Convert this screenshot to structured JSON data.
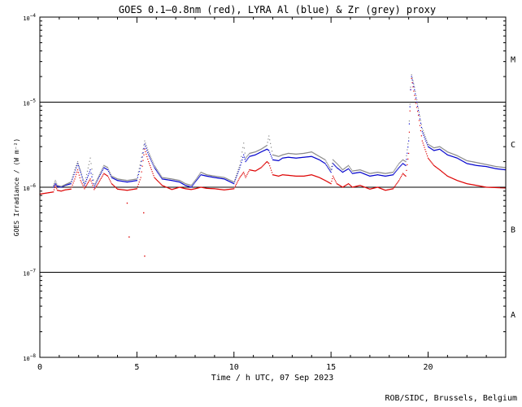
{
  "chart_data": {
    "type": "scatter",
    "title": "GOES 0.1–0.8nm (red), LYRA Al (blue) & Zr (grey) proxy",
    "xlabel": "Time / h UTC, 07 Sep 2023",
    "ylabel": "GOES Irradiance / (W m⁻²)",
    "credit": "ROB/SIDC, Brussels, Belgium",
    "xlim": [
      0,
      24
    ],
    "ylim": [
      1e-08,
      0.0001
    ],
    "yscale": "log",
    "x_ticks": [
      0,
      5,
      10,
      15,
      20
    ],
    "x_tick_labels": [
      "0",
      "5",
      "10",
      "15",
      "20"
    ],
    "y_ticks": [
      1e-08,
      1e-07,
      1e-06,
      1e-05,
      0.0001
    ],
    "y_tick_labels": [
      {
        "base": "10",
        "exp": "−8"
      },
      {
        "base": "10",
        "exp": "−7"
      },
      {
        "base": "10",
        "exp": "−6"
      },
      {
        "base": "10",
        "exp": "−5"
      },
      {
        "base": "10",
        "exp": "−4"
      }
    ],
    "flare_classes": [
      {
        "label": "A",
        "value": 3.2e-08
      },
      {
        "label": "B",
        "value": 3.2e-07
      },
      {
        "label": "C",
        "value": 3.2e-06
      },
      {
        "label": "M",
        "value": 3.2e-05
      }
    ],
    "reference_lines": [
      1e-07,
      1e-06,
      1e-05
    ],
    "grid": false,
    "series": [
      {
        "name": "red",
        "color": "#dd0000",
        "x": [
          0,
          0.7,
          0.8,
          0.9,
          1.1,
          1.3,
          1.6,
          1.8,
          1.95,
          2.1,
          2.3,
          2.6,
          2.8,
          3.0,
          3.3,
          3.5,
          3.7,
          4.0,
          4.5,
          5.0,
          5.2,
          5.4,
          5.6,
          5.9,
          6.3,
          6.8,
          7.2,
          7.5,
          7.8,
          8.0,
          8.3,
          8.6,
          9.0,
          9.5,
          10.0,
          10.3,
          10.5,
          10.6,
          10.8,
          11.1,
          11.4,
          11.7,
          11.8,
          12.0,
          12.3,
          12.5,
          12.8,
          13.2,
          13.6,
          14.0,
          14.4,
          14.7,
          15.0,
          15.1,
          15.3,
          15.6,
          15.9,
          16.1,
          16.5,
          17.0,
          17.4,
          17.8,
          18.2,
          18.5,
          18.7,
          18.85,
          19.0,
          19.1,
          19.15,
          19.3,
          19.5,
          19.7,
          20.0,
          20.3,
          20.6,
          21.0,
          21.5,
          22.0,
          22.5,
          23.0,
          23.5,
          24.0
        ],
        "y": [
          8.3e-07,
          8.8e-07,
          1.05e-06,
          9.2e-07,
          9e-07,
          9.3e-07,
          9.5e-07,
          1.25e-06,
          1.6e-06,
          1.2e-06,
          9.6e-07,
          1.25e-06,
          9.4e-07,
          1.1e-06,
          1.45e-06,
          1.35e-06,
          1.1e-06,
          9.5e-07,
          9.2e-07,
          9.6e-07,
          1.3e-06,
          2.8e-06,
          2e-06,
          1.3e-06,
          1.05e-06,
          9.4e-07,
          1e-06,
          9.6e-07,
          9.4e-07,
          9.6e-07,
          1e-06,
          9.7e-07,
          9.6e-07,
          9.3e-07,
          9.6e-07,
          1.3e-06,
          1.5e-06,
          1.3e-06,
          1.6e-06,
          1.55e-06,
          1.7e-06,
          2e-06,
          1.9e-06,
          1.4e-06,
          1.35e-06,
          1.4e-06,
          1.38e-06,
          1.35e-06,
          1.35e-06,
          1.4e-06,
          1.3e-06,
          1.2e-06,
          1.1e-06,
          1.35e-06,
          1.1e-06,
          1e-06,
          1.1e-06,
          1e-06,
          1.05e-06,
          9.5e-07,
          1e-06,
          9.2e-07,
          9.6e-07,
          1.2e-06,
          1.45e-06,
          1.35e-06,
          2.5e-06,
          1.4e-05,
          1.9e-05,
          1.2e-05,
          7e-06,
          3.5e-06,
          2.2e-06,
          1.8e-06,
          1.6e-06,
          1.35e-06,
          1.2e-06,
          1.1e-06,
          1.05e-06,
          1e-06,
          9.9e-07,
          9.8e-07
        ],
        "outliers": {
          "x": [
            4.5,
            4.6,
            5.35,
            5.4
          ],
          "y": [
            6.5e-07,
            2.6e-07,
            5e-07,
            1.55e-07
          ]
        }
      },
      {
        "name": "blue",
        "color": "#0000cc",
        "x": [
          0.7,
          0.8,
          0.9,
          1.1,
          1.3,
          1.6,
          1.8,
          1.95,
          2.1,
          2.3,
          2.6,
          2.8,
          3.0,
          3.3,
          3.5,
          3.7,
          4.0,
          4.5,
          5.0,
          5.2,
          5.4,
          5.6,
          5.9,
          6.3,
          6.8,
          7.2,
          7.5,
          7.8,
          8.0,
          8.3,
          8.6,
          9.0,
          9.5,
          10.0,
          10.3,
          10.5,
          10.6,
          10.8,
          11.1,
          11.4,
          11.7,
          11.8,
          12.0,
          12.3,
          12.5,
          12.8,
          13.2,
          13.6,
          14.0,
          14.4,
          14.7,
          15.0,
          15.1,
          15.3,
          15.6,
          15.9,
          16.1,
          16.5,
          17.0,
          17.4,
          17.8,
          18.2,
          18.5,
          18.7,
          18.85,
          19.0,
          19.1,
          19.15,
          19.3,
          19.5,
          19.7,
          20.0,
          20.3,
          20.6,
          21.0,
          21.5,
          22.0,
          22.5,
          23.0,
          23.5,
          24.0
        ],
        "y": [
          1e-06,
          1.1e-06,
          1.02e-06,
          1e-06,
          1.05e-06,
          1.1e-06,
          1.5e-06,
          1.9e-06,
          1.5e-06,
          1.05e-06,
          1.6e-06,
          1e-06,
          1.25e-06,
          1.7e-06,
          1.6e-06,
          1.3e-06,
          1.2e-06,
          1.15e-06,
          1.2e-06,
          1.8e-06,
          3.2e-06,
          2.4e-06,
          1.7e-06,
          1.25e-06,
          1.2e-06,
          1.15e-06,
          1.05e-06,
          1e-06,
          1.15e-06,
          1.4e-06,
          1.35e-06,
          1.3e-06,
          1.25e-06,
          1.1e-06,
          1.7e-06,
          2.4e-06,
          2e-06,
          2.3e-06,
          2.4e-06,
          2.6e-06,
          2.8e-06,
          2.7e-06,
          2.1e-06,
          2.05e-06,
          2.2e-06,
          2.25e-06,
          2.2e-06,
          2.25e-06,
          2.3e-06,
          2.1e-06,
          1.9e-06,
          1.5e-06,
          1.9e-06,
          1.7e-06,
          1.5e-06,
          1.65e-06,
          1.45e-06,
          1.5e-06,
          1.35e-06,
          1.4e-06,
          1.35e-06,
          1.4e-06,
          1.7e-06,
          1.9e-06,
          1.8e-06,
          3.5e-06,
          1.4e-05,
          2e-05,
          1.4e-05,
          8e-06,
          4.5e-06,
          3e-06,
          2.7e-06,
          2.8e-06,
          2.4e-06,
          2.2e-06,
          1.9e-06,
          1.8e-06,
          1.75e-06,
          1.65e-06,
          1.6e-06
        ]
      },
      {
        "name": "grey",
        "color": "#888888",
        "x": [
          0.7,
          0.8,
          0.9,
          1.1,
          1.3,
          1.6,
          1.8,
          1.95,
          2.1,
          2.3,
          2.6,
          2.8,
          3.0,
          3.3,
          3.5,
          3.7,
          4.0,
          4.5,
          5.0,
          5.2,
          5.4,
          5.6,
          5.9,
          6.3,
          6.8,
          7.2,
          7.5,
          7.8,
          8.0,
          8.3,
          8.6,
          9.0,
          9.5,
          10.0,
          10.3,
          10.5,
          10.6,
          10.8,
          11.1,
          11.4,
          11.7,
          11.8,
          12.0,
          12.3,
          12.5,
          12.8,
          13.2,
          13.6,
          14.0,
          14.4,
          14.7,
          15.0,
          15.1,
          15.3,
          15.6,
          15.9,
          16.1,
          16.5,
          17.0,
          17.4,
          17.8,
          18.2,
          18.5,
          18.7,
          18.85,
          19.0,
          19.1,
          19.15,
          19.3,
          19.5,
          19.7,
          20.0,
          20.3,
          20.6,
          21.0,
          21.5,
          22.0,
          22.5,
          23.0,
          23.5,
          24.0
        ],
        "y": [
          1.05e-06,
          1.2e-06,
          1.05e-06,
          1.02e-06,
          1.07e-06,
          1.15e-06,
          1.6e-06,
          2e-06,
          1.55e-06,
          1.08e-06,
          2.2e-06,
          1.05e-06,
          1.3e-06,
          1.8e-06,
          1.7e-06,
          1.35e-06,
          1.25e-06,
          1.2e-06,
          1.25e-06,
          2e-06,
          3.5e-06,
          2.6e-06,
          1.8e-06,
          1.3e-06,
          1.25e-06,
          1.2e-06,
          1.1e-06,
          1.05e-06,
          1.2e-06,
          1.5e-06,
          1.4e-06,
          1.35e-06,
          1.3e-06,
          1.15e-06,
          1.8e-06,
          3.3e-06,
          2.2e-06,
          2.5e-06,
          2.6e-06,
          2.8e-06,
          3.1e-06,
          4e-06,
          2.4e-06,
          2.3e-06,
          2.4e-06,
          2.5e-06,
          2.45e-06,
          2.5e-06,
          2.6e-06,
          2.3e-06,
          2.1e-06,
          1.6e-06,
          2.1e-06,
          1.9e-06,
          1.6e-06,
          1.8e-06,
          1.55e-06,
          1.6e-06,
          1.45e-06,
          1.5e-06,
          1.45e-06,
          1.5e-06,
          1.9e-06,
          2.1e-06,
          2e-06,
          3.8e-06,
          1.5e-05,
          2.1e-05,
          1.5e-05,
          8.5e-06,
          4.9e-06,
          3.2e-06,
          2.9e-06,
          3e-06,
          2.6e-06,
          2.35e-06,
          2.05e-06,
          1.95e-06,
          1.85e-06,
          1.75e-06,
          1.7e-06
        ]
      }
    ]
  }
}
